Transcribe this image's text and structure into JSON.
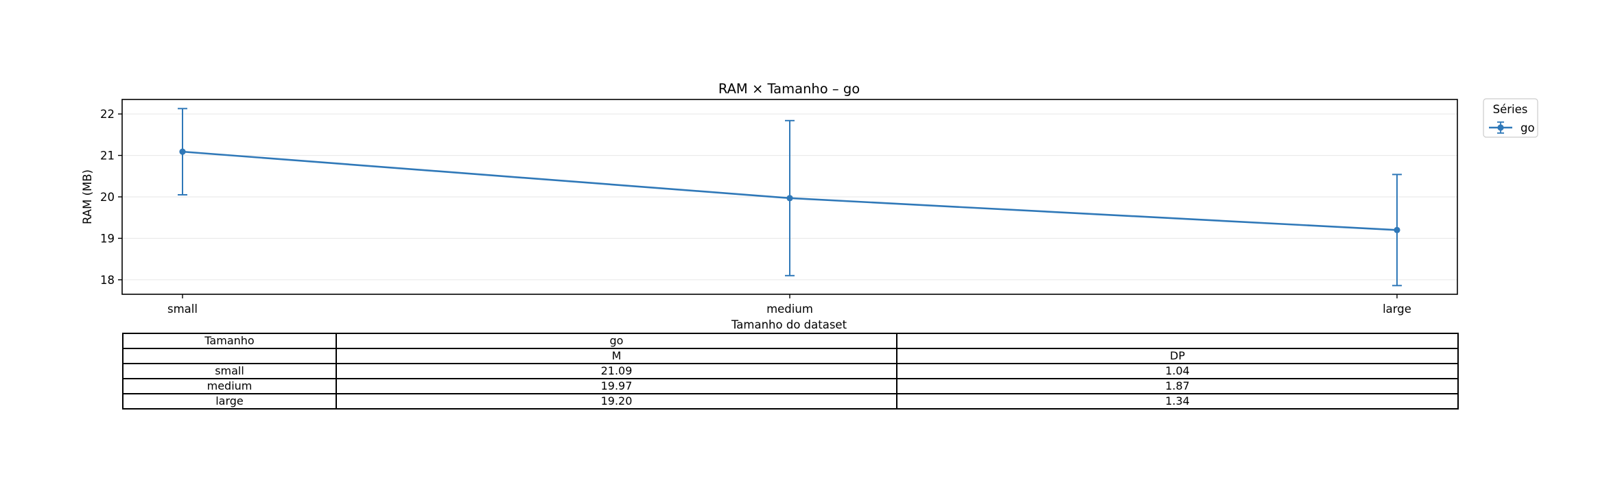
{
  "chart_data": {
    "type": "line",
    "title": "RAM × Tamanho – go",
    "xlabel": "Tamanho do dataset",
    "ylabel": "RAM (MB)",
    "categories": [
      "small",
      "medium",
      "large"
    ],
    "series": [
      {
        "name": "go",
        "values": [
          21.09,
          19.97,
          19.2
        ],
        "error": [
          1.04,
          1.87,
          1.34
        ],
        "color": "#2f78b8"
      }
    ],
    "yticks": [
      18,
      19,
      20,
      21,
      22
    ],
    "ylim": [
      17.65,
      22.35
    ],
    "grid": "horizontal",
    "legend": {
      "title": "Séries",
      "placement": "outside top-right"
    }
  },
  "table": {
    "header_row_1": [
      "Tamanho",
      "go",
      ""
    ],
    "header_row_2": [
      "",
      "M",
      "DP"
    ],
    "rows": [
      [
        "small",
        "21.09",
        "1.04"
      ],
      [
        "medium",
        "19.97",
        "1.87"
      ],
      [
        "large",
        "19.20",
        "1.34"
      ]
    ]
  }
}
